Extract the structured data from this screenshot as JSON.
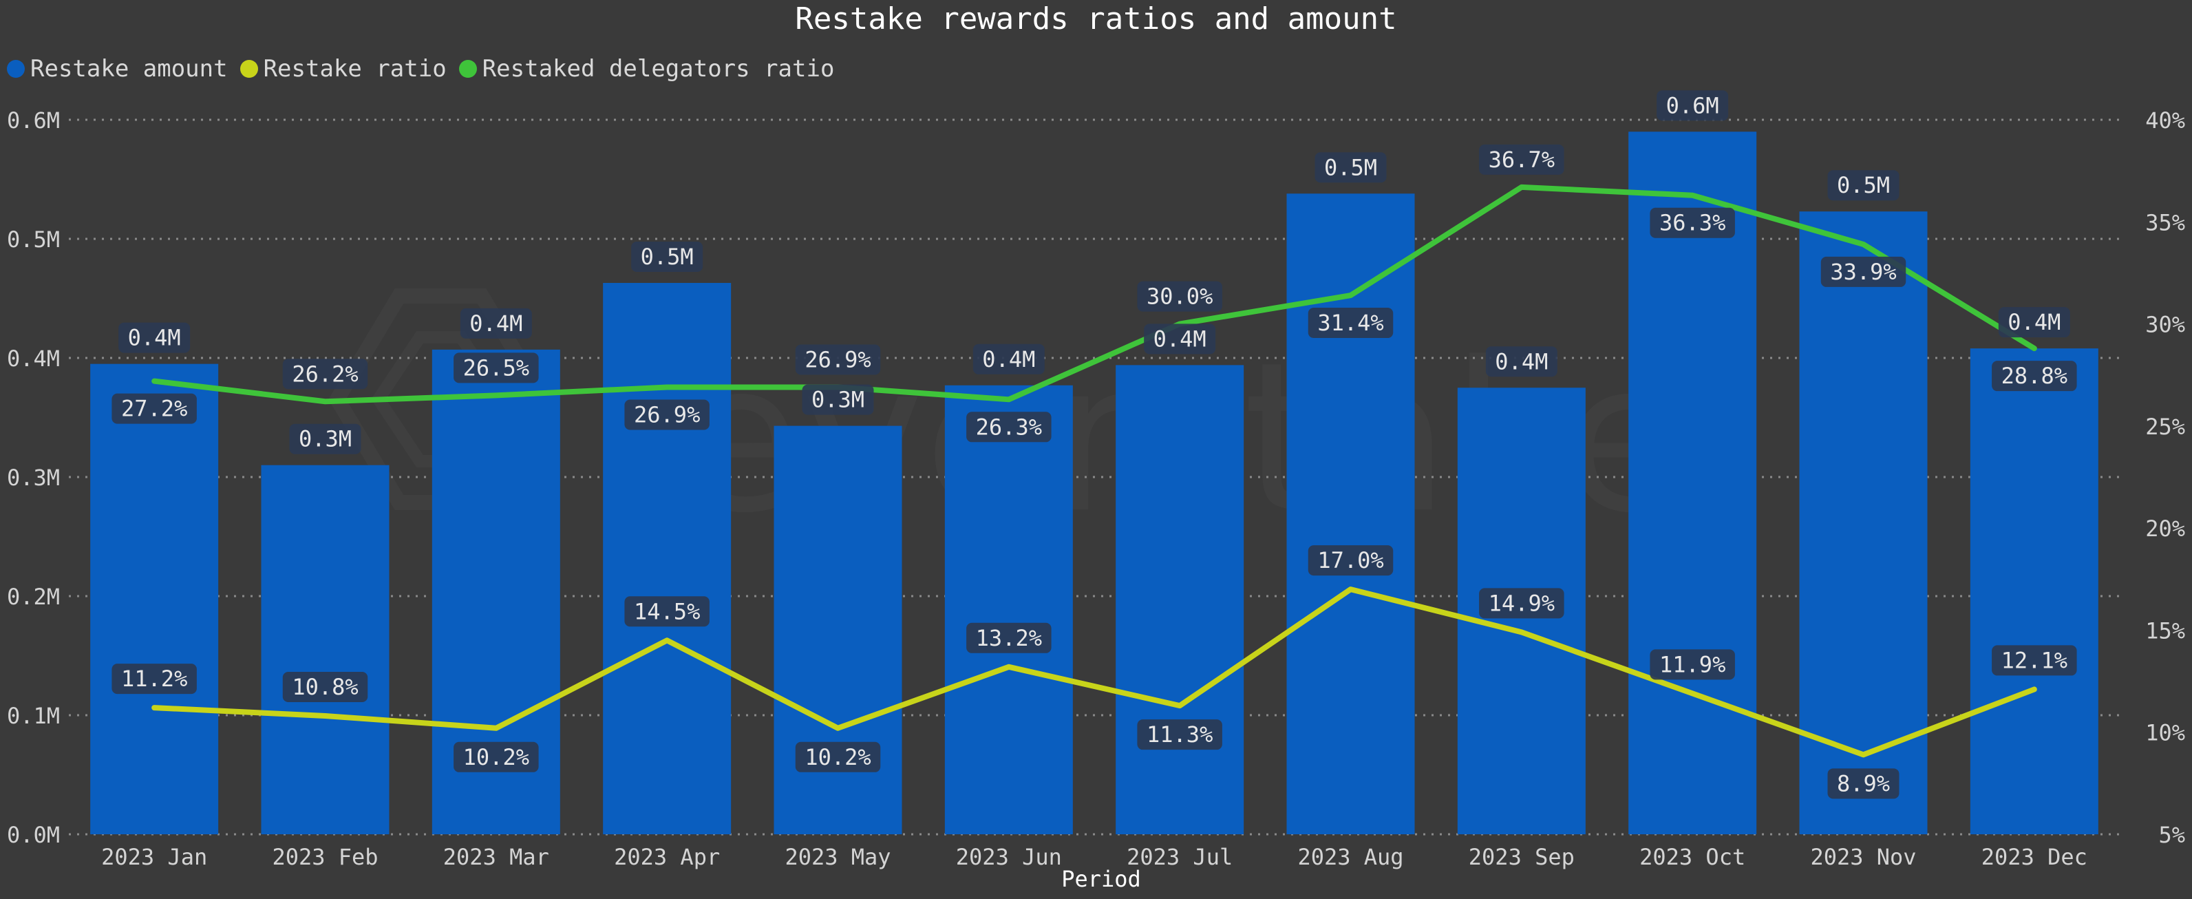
{
  "chart_data": {
    "type": "bar",
    "title": "Restake rewards ratios and amount",
    "xlabel": "Period",
    "categories": [
      "2023 Jan",
      "2023 Feb",
      "2023 Mar",
      "2023 Apr",
      "2023 May",
      "2023 Jun",
      "2023 Jul",
      "2023 Aug",
      "2023 Sep",
      "2023 Oct",
      "2023 Nov",
      "2023 Dec"
    ],
    "ylim_left": [
      0,
      0.6
    ],
    "ylim_right": [
      5,
      40
    ],
    "yticks_left": [
      "0.0M",
      "0.1M",
      "0.2M",
      "0.3M",
      "0.4M",
      "0.5M",
      "0.6M"
    ],
    "yticks_right": [
      "5%",
      "10%",
      "15%",
      "20%",
      "25%",
      "30%",
      "35%",
      "40%"
    ],
    "grid": true,
    "legend_position": "top-left",
    "series": [
      {
        "name": "Restake amount",
        "type": "bar",
        "axis": "left",
        "color": "#0a5ebf",
        "values": [
          0.395,
          0.31,
          0.407,
          0.463,
          0.343,
          0.377,
          0.394,
          0.538,
          0.375,
          0.59,
          0.523,
          0.408
        ],
        "labels": [
          "0.4M",
          "0.3M",
          "0.4M",
          "0.5M",
          "0.3M",
          "0.4M",
          "0.4M",
          "0.5M",
          "0.4M",
          "0.6M",
          "0.5M",
          "0.4M"
        ]
      },
      {
        "name": "Restake ratio",
        "type": "line",
        "axis": "right",
        "color": "#c8d41a",
        "values": [
          11.2,
          10.8,
          10.2,
          14.5,
          10.2,
          13.2,
          11.3,
          17.0,
          14.9,
          11.9,
          8.9,
          12.1
        ],
        "labels": [
          "11.2%",
          "10.8%",
          "10.2%",
          "14.5%",
          "10.2%",
          "13.2%",
          "11.3%",
          "17.0%",
          "14.9%",
          "11.9%",
          "8.9%",
          "12.1%"
        ]
      },
      {
        "name": "Restaked delegators ratio",
        "type": "line",
        "axis": "right",
        "color": "#3fc43a",
        "values": [
          27.2,
          26.2,
          26.5,
          26.9,
          26.9,
          26.3,
          30.0,
          31.4,
          36.7,
          36.3,
          33.9,
          28.8
        ],
        "labels": [
          "27.2%",
          "26.2%",
          "26.5%",
          "26.9%",
          "26.9%",
          "26.3%",
          "30.0%",
          "31.4%",
          "36.7%",
          "36.3%",
          "33.9%",
          "28.8%"
        ]
      }
    ]
  },
  "watermark": {
    "text": "everstake"
  }
}
